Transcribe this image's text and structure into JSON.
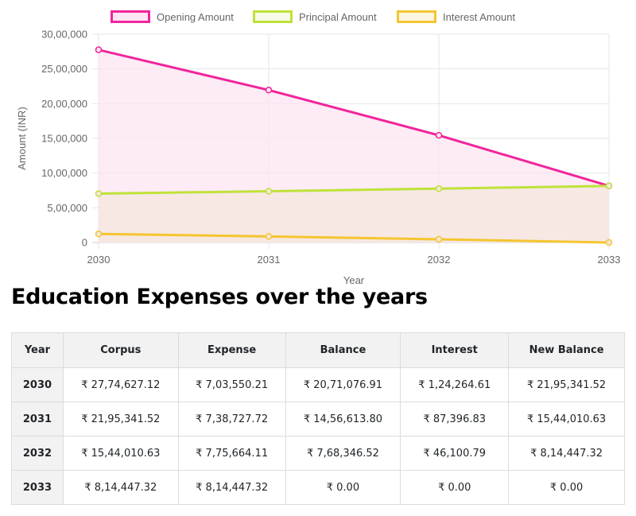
{
  "chart_data": {
    "type": "area",
    "title": "",
    "xlabel": "Year",
    "ylabel": "Amount (INR)",
    "x": [
      "2030",
      "2031",
      "2032",
      "2033"
    ],
    "ylim": [
      0,
      3000000
    ],
    "yticks": [
      0,
      500000,
      1000000,
      1500000,
      2000000,
      2500000,
      3000000
    ],
    "ytick_labels": [
      "0",
      "5,00,000",
      "10,00,000",
      "15,00,000",
      "20,00,000",
      "25,00,000",
      "30,00,000"
    ],
    "grid": true,
    "legend_position": "top",
    "series": [
      {
        "name": "Opening Amount",
        "color": "#f0259c",
        "fill": "#fde6f3",
        "values": [
          2774627.12,
          2195341.52,
          1544010.63,
          814447.32
        ]
      },
      {
        "name": "Principal Amount",
        "color": "#bfe23a",
        "fill": "#f5e7df",
        "values": [
          703550.21,
          738727.72,
          775664.11,
          814447.32
        ]
      },
      {
        "name": "Interest Amount",
        "color": "#f5c531",
        "fill": "#f5e7df",
        "values": [
          124264.61,
          87396.83,
          46100.79,
          0
        ]
      }
    ]
  },
  "section": {
    "heading": "Education Expenses over the years"
  },
  "table": {
    "headers": [
      "Year",
      "Corpus",
      "Expense",
      "Balance",
      "Interest",
      "New Balance"
    ],
    "rows": [
      [
        "2030",
        "₹ 27,74,627.12",
        "₹ 7,03,550.21",
        "₹ 20,71,076.91",
        "₹ 1,24,264.61",
        "₹ 21,95,341.52"
      ],
      [
        "2031",
        "₹ 21,95,341.52",
        "₹ 7,38,727.72",
        "₹ 14,56,613.80",
        "₹ 87,396.83",
        "₹ 15,44,010.63"
      ],
      [
        "2032",
        "₹ 15,44,010.63",
        "₹ 7,75,664.11",
        "₹ 7,68,346.52",
        "₹ 46,100.79",
        "₹ 8,14,447.32"
      ],
      [
        "2033",
        "₹ 8,14,447.32",
        "₹ 8,14,447.32",
        "₹ 0.00",
        "₹ 0.00",
        "₹ 0.00"
      ]
    ]
  }
}
